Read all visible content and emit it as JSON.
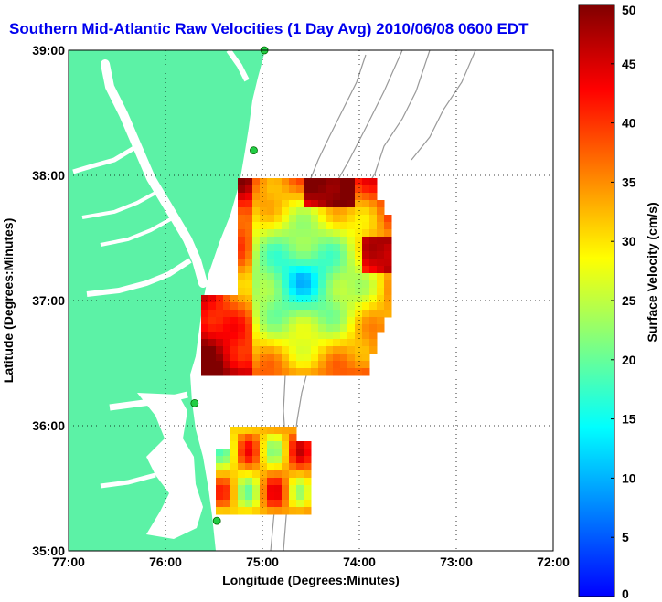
{
  "title": "Southern Mid-Atlantic Raw Velocities (1 Day Avg) 2010/06/08 0600 EDT",
  "map": {
    "xlabel": "Longitude (Degrees:Minutes)",
    "ylabel": "Latitude (Degrees:Minutes)",
    "lon_range": [
      -77,
      -72
    ],
    "lat_range": [
      35,
      39
    ],
    "lon_ticks": [
      {
        "value": -77,
        "label": "77:00"
      },
      {
        "value": -76,
        "label": "76:00"
      },
      {
        "value": -75,
        "label": "75:00"
      },
      {
        "value": -74,
        "label": "74:00"
      },
      {
        "value": -73,
        "label": "73:00"
      },
      {
        "value": -72,
        "label": "72:00"
      }
    ],
    "lat_ticks": [
      {
        "value": 35,
        "label": "35:00"
      },
      {
        "value": 36,
        "label": "36:00"
      },
      {
        "value": 37,
        "label": "37:00"
      },
      {
        "value": 38,
        "label": "38:00"
      },
      {
        "value": 39,
        "label": "39:00"
      }
    ],
    "land_color": "#5cf2a6",
    "water_color": "#ffffff",
    "contour_color": "#999999",
    "grid": true,
    "station_color": "#22cc44",
    "stations": [
      {
        "lon": -74.98,
        "lat": 39.0
      },
      {
        "lon": -75.09,
        "lat": 38.2
      },
      {
        "lon": -75.7,
        "lat": 36.18
      },
      {
        "lon": -75.47,
        "lat": 35.24
      }
    ]
  },
  "colorbar": {
    "label": "Surface Velocity (cm/s)",
    "min": 0,
    "max": 50,
    "ticks": [
      "0",
      "5",
      "10",
      "15",
      "20",
      "25",
      "30",
      "35",
      "40",
      "45",
      "50"
    ],
    "colormap": [
      "#0000ff",
      "#0080ff",
      "#00ffff",
      "#80ff80",
      "#ffff00",
      "#ff8000",
      "#ff0000",
      "#800000"
    ]
  }
}
